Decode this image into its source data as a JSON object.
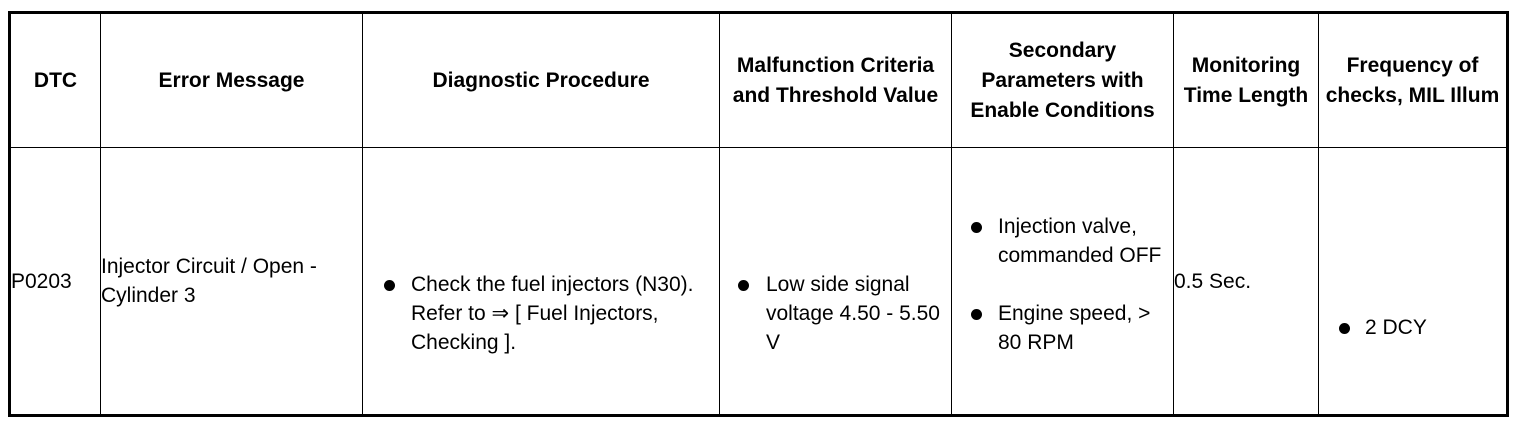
{
  "table": {
    "headers": [
      "DTC",
      "Error Message",
      "Diagnostic Procedure",
      "Malfunction Criteria and Threshold Value",
      "Secondary Parameters with Enable Conditions",
      "Monitoring Time Length",
      "Frequency of checks, MIL Illum"
    ],
    "row": {
      "dtc": "P0203",
      "error_message": "Injector Circuit / Open - Cylinder 3",
      "diagnostic_procedure": "Check the fuel injectors (N30). Refer to ⇒ [ Fuel Injectors, Checking ].",
      "malfunction_criteria": "Low side signal voltage 4.50 - 5.50 V",
      "secondary_parameters": [
        "Injection valve, commanded OFF",
        "Engine speed, > 80 RPM"
      ],
      "monitoring_time": "0.5 Sec.",
      "frequency": "2 DCY"
    }
  }
}
